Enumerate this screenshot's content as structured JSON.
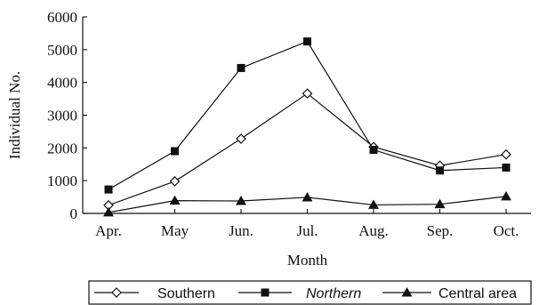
{
  "chart_data": {
    "type": "line",
    "title": "",
    "xlabel": "Month",
    "ylabel": "Individual No.",
    "categories": [
      "Apr.",
      "May",
      "Jun.",
      "Jul.",
      "Aug.",
      "Sep.",
      "Oct."
    ],
    "ylim": [
      0,
      6000
    ],
    "yticks": [
      0,
      1000,
      2000,
      3000,
      4000,
      5000,
      6000
    ],
    "grid": false,
    "legend_position": "bottom",
    "series": [
      {
        "name": "Southern",
        "marker": "diamond-open",
        "color": "#111111",
        "values": [
          250,
          980,
          2280,
          3660,
          2030,
          1460,
          1800
        ]
      },
      {
        "name": "Northern",
        "marker": "square-filled",
        "color": "#111111",
        "values": [
          730,
          1900,
          4440,
          5250,
          1940,
          1310,
          1400
        ]
      },
      {
        "name": "Central area",
        "marker": "triangle-filled",
        "color": "#111111",
        "values": [
          30,
          390,
          380,
          490,
          260,
          280,
          520
        ]
      }
    ]
  }
}
